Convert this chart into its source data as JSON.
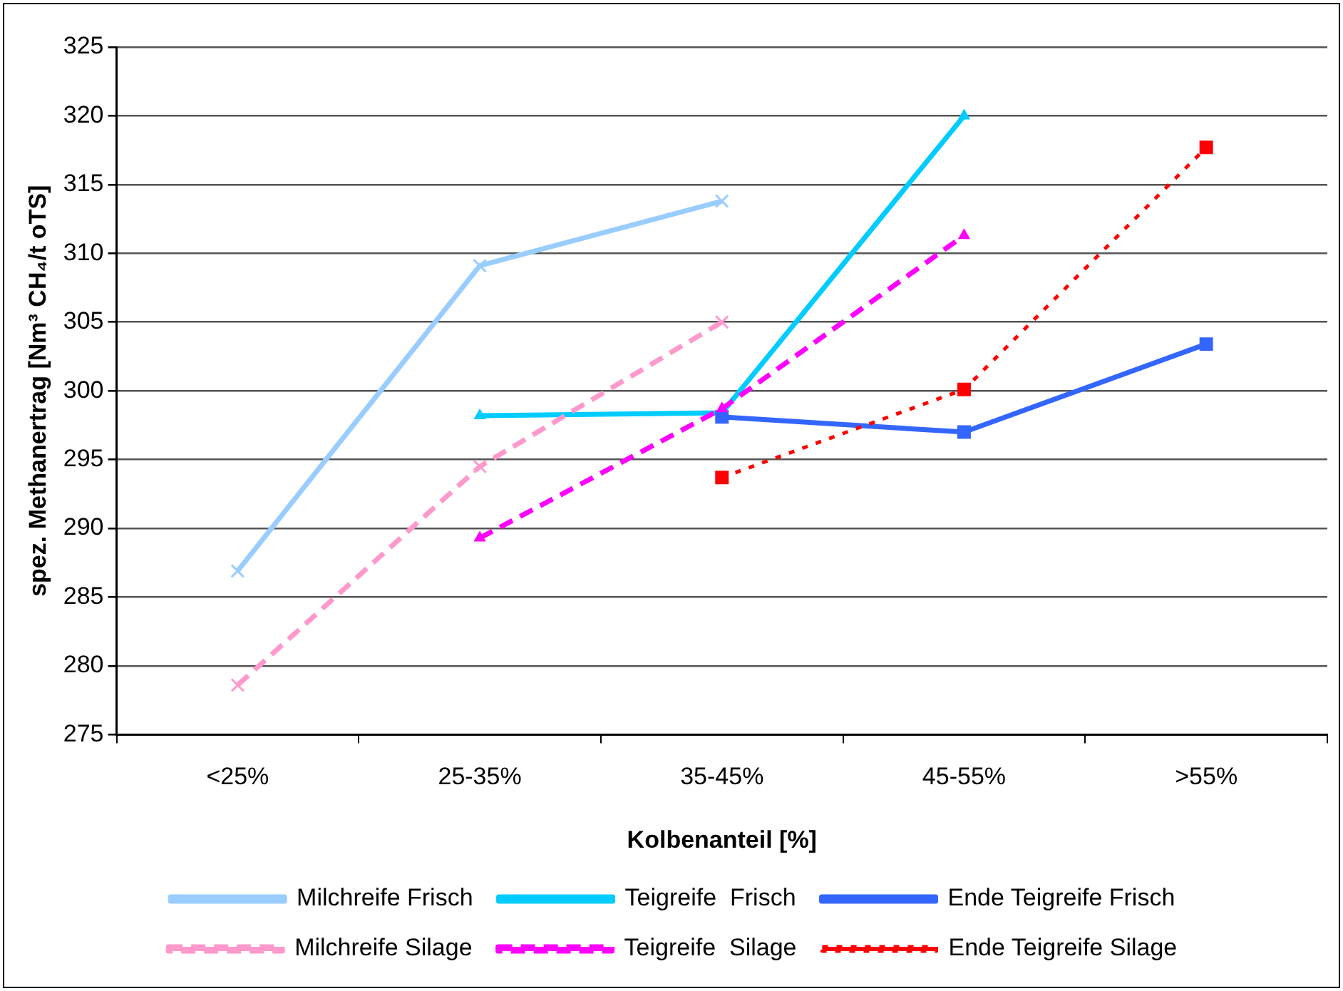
{
  "chart_data": {
    "type": "line",
    "xlabel": "Kolbenanteil [%]",
    "ylabel": "spez. Methanertrag [Nm³ CH₄/t oTS]",
    "categories": [
      "<25%",
      "25-35%",
      "35-45%",
      "45-55%",
      ">55%"
    ],
    "ylim": [
      275,
      325
    ],
    "yticks": [
      275,
      280,
      285,
      290,
      295,
      300,
      305,
      310,
      315,
      320,
      325
    ],
    "grid": "y",
    "legend": "bottom",
    "series": [
      {
        "name": "Milchreife Frisch",
        "color": "#99ccff",
        "marker": "cross",
        "line_style": "solid",
        "values": [
          286.9,
          309.1,
          313.8,
          null,
          null
        ]
      },
      {
        "name": "Teigreife  Frisch",
        "color": "#00ccff",
        "marker": "triangle",
        "line_style": "solid",
        "values": [
          null,
          298.2,
          298.4,
          320.0,
          null
        ]
      },
      {
        "name": "Ende Teigreife Frisch",
        "color": "#3366ff",
        "marker": "square",
        "line_style": "solid",
        "values": [
          null,
          null,
          298.1,
          297.0,
          303.4
        ]
      },
      {
        "name": "Milchreife Silage",
        "color": "#ff99cc",
        "marker": "cross",
        "line_style": "dashed",
        "values": [
          278.6,
          294.5,
          305.0,
          null,
          null
        ]
      },
      {
        "name": "Teigreife  Silage",
        "color": "#ff00ff",
        "marker": "triangle",
        "line_style": "dashed",
        "values": [
          null,
          289.3,
          298.7,
          311.3,
          null
        ]
      },
      {
        "name": "Ende Teigreife Silage",
        "color": "#ff0000",
        "marker": "square",
        "line_style": "dotted",
        "values": [
          null,
          null,
          293.7,
          300.1,
          317.7
        ]
      }
    ]
  }
}
